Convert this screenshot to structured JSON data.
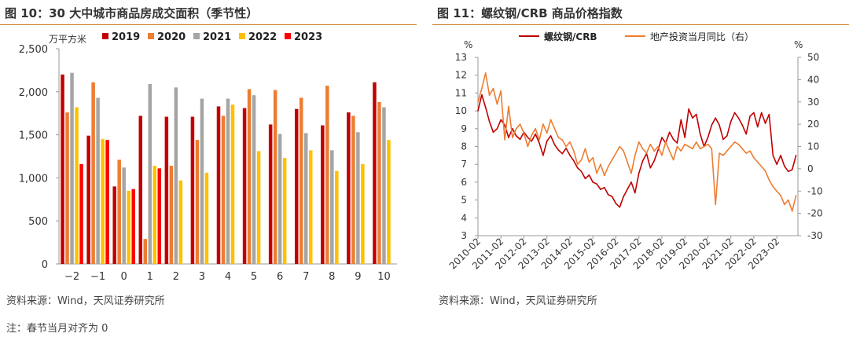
{
  "left": {
    "title": "图 10：30 大中城市商品房成交面积（季节性）",
    "source": "资料来源：Wind，天风证券研究所"
  },
  "right": {
    "title": "图 11：螺纹钢/CRB 商品价格指数",
    "source": "资料来源：Wind，天风证券研究所"
  },
  "note": "注：春节当月对齐为 0",
  "chart_data": [
    {
      "type": "bar",
      "unit_label": "万平方米",
      "categories": [
        "−2",
        "−1",
        "0",
        "1",
        "2",
        "3",
        "4",
        "5",
        "6",
        "7",
        "8",
        "9",
        "10"
      ],
      "ylim": [
        0,
        2500
      ],
      "yticks": [
        0,
        500,
        1000,
        1500,
        2000,
        2500
      ],
      "ytick_labels": [
        "0",
        "500",
        "1,000",
        "1,500",
        "2,000",
        "2,500"
      ],
      "legend_position": "top",
      "series": [
        {
          "name": "2019",
          "color": "#c00000",
          "values": [
            2200,
            1490,
            900,
            1720,
            1710,
            1710,
            1830,
            1810,
            1620,
            1800,
            1610,
            1760,
            2110
          ]
        },
        {
          "name": "2020",
          "color": "#ed7d31",
          "values": [
            1760,
            2110,
            1210,
            290,
            1140,
            1440,
            1720,
            2030,
            2020,
            1930,
            2070,
            1720,
            1880
          ]
        },
        {
          "name": "2021",
          "color": "#a5a5a5",
          "values": [
            2220,
            1930,
            1120,
            2090,
            2050,
            1920,
            1920,
            1960,
            1510,
            1520,
            1320,
            1530,
            1820
          ]
        },
        {
          "name": "2022",
          "color": "#ffc000",
          "values": [
            1820,
            1450,
            850,
            1140,
            970,
            1060,
            1850,
            1310,
            1230,
            1320,
            1080,
            1160,
            1440
          ]
        },
        {
          "name": "2023",
          "color": "#ff0000",
          "values": [
            1160,
            1440,
            870,
            1110,
            null,
            null,
            null,
            null,
            null,
            null,
            null,
            null,
            null
          ]
        }
      ]
    },
    {
      "type": "line",
      "left_axis_label": "%",
      "right_axis_label": "%",
      "ylim_left": [
        3,
        13
      ],
      "ylim_right": [
        -30,
        50
      ],
      "yticks_left": [
        3,
        4,
        5,
        6,
        7,
        8,
        9,
        10,
        11,
        12,
        13
      ],
      "yticks_right": [
        -30,
        -20,
        -10,
        0,
        10,
        20,
        30,
        40,
        50
      ],
      "x_labels": [
        "2010-02",
        "2011-02",
        "2012-02",
        "2013-02",
        "2014-02",
        "2015-02",
        "2016-02",
        "2017-02",
        "2018-02",
        "2019-02",
        "2020-02",
        "2021-02",
        "2022-02",
        "2023-02"
      ],
      "legend_position": "top",
      "series": [
        {
          "name": "螺纹钢/CRB",
          "axis": "left",
          "color": "#c00000",
          "points": [
            [
              0,
              10.0
            ],
            [
              2,
              10.9
            ],
            [
              4,
              10.2
            ],
            [
              6,
              9.4
            ],
            [
              8,
              8.8
            ],
            [
              10,
              9.0
            ],
            [
              12,
              9.5
            ],
            [
              14,
              9.2
            ],
            [
              16,
              8.5
            ],
            [
              18,
              9.0
            ],
            [
              20,
              8.6
            ],
            [
              22,
              8.4
            ],
            [
              24,
              8.8
            ],
            [
              26,
              8.5
            ],
            [
              28,
              8.3
            ],
            [
              30,
              8.7
            ],
            [
              32,
              8.2
            ],
            [
              34,
              7.5
            ],
            [
              36,
              8.3
            ],
            [
              38,
              8.6
            ],
            [
              40,
              8.1
            ],
            [
              42,
              7.8
            ],
            [
              44,
              7.6
            ],
            [
              46,
              7.9
            ],
            [
              48,
              7.5
            ],
            [
              50,
              7.2
            ],
            [
              52,
              6.8
            ],
            [
              54,
              6.6
            ],
            [
              56,
              6.2
            ],
            [
              58,
              6.4
            ],
            [
              60,
              6.0
            ],
            [
              62,
              5.9
            ],
            [
              64,
              5.6
            ],
            [
              66,
              5.7
            ],
            [
              68,
              5.3
            ],
            [
              70,
              5.2
            ],
            [
              72,
              4.8
            ],
            [
              74,
              4.6
            ],
            [
              76,
              5.2
            ],
            [
              78,
              5.6
            ],
            [
              80,
              6.0
            ],
            [
              82,
              5.4
            ],
            [
              84,
              6.5
            ],
            [
              86,
              7.2
            ],
            [
              88,
              7.6
            ],
            [
              90,
              6.8
            ],
            [
              92,
              7.2
            ],
            [
              94,
              7.8
            ],
            [
              96,
              8.5
            ],
            [
              98,
              8.2
            ],
            [
              100,
              8.8
            ],
            [
              102,
              8.4
            ],
            [
              104,
              8.2
            ],
            [
              106,
              9.5
            ],
            [
              108,
              8.5
            ],
            [
              110,
              10.1
            ],
            [
              112,
              9.6
            ],
            [
              114,
              9.8
            ],
            [
              116,
              8.7
            ],
            [
              118,
              8.0
            ],
            [
              120,
              8.5
            ],
            [
              122,
              9.2
            ],
            [
              124,
              9.6
            ],
            [
              126,
              9.2
            ],
            [
              128,
              8.4
            ],
            [
              130,
              8.6
            ],
            [
              132,
              9.4
            ],
            [
              134,
              9.9
            ],
            [
              136,
              9.6
            ],
            [
              138,
              9.2
            ],
            [
              140,
              8.7
            ],
            [
              142,
              9.7
            ],
            [
              144,
              9.9
            ],
            [
              146,
              9.1
            ],
            [
              148,
              9.9
            ],
            [
              150,
              9.3
            ],
            [
              152,
              9.8
            ],
            [
              154,
              7.5
            ],
            [
              156,
              7.0
            ],
            [
              158,
              7.5
            ],
            [
              160,
              6.9
            ],
            [
              162,
              6.6
            ],
            [
              164,
              6.7
            ],
            [
              166,
              7.5
            ]
          ]
        },
        {
          "name": "地产投资当月同比（右）",
          "axis": "right",
          "color": "#ed7d31",
          "points": [
            [
              0,
              30
            ],
            [
              2,
              36
            ],
            [
              4,
              43
            ],
            [
              6,
              33
            ],
            [
              8,
              36
            ],
            [
              10,
              29
            ],
            [
              12,
              35
            ],
            [
              14,
              13
            ],
            [
              16,
              28
            ],
            [
              18,
              14
            ],
            [
              20,
              18
            ],
            [
              22,
              20
            ],
            [
              24,
              16
            ],
            [
              26,
              10
            ],
            [
              28,
              15
            ],
            [
              30,
              18
            ],
            [
              32,
              13
            ],
            [
              34,
              20
            ],
            [
              36,
              16
            ],
            [
              38,
              22
            ],
            [
              40,
              18
            ],
            [
              42,
              14
            ],
            [
              44,
              13
            ],
            [
              46,
              10
            ],
            [
              48,
              12
            ],
            [
              50,
              8
            ],
            [
              52,
              2
            ],
            [
              54,
              4
            ],
            [
              56,
              9
            ],
            [
              58,
              3
            ],
            [
              60,
              5
            ],
            [
              62,
              -2
            ],
            [
              64,
              2
            ],
            [
              66,
              -3
            ],
            [
              68,
              1
            ],
            [
              70,
              4
            ],
            [
              72,
              7
            ],
            [
              74,
              10
            ],
            [
              76,
              8
            ],
            [
              78,
              3
            ],
            [
              80,
              -2
            ],
            [
              82,
              6
            ],
            [
              84,
              12
            ],
            [
              86,
              9
            ],
            [
              88,
              7
            ],
            [
              90,
              11
            ],
            [
              92,
              8
            ],
            [
              94,
              10
            ],
            [
              96,
              6
            ],
            [
              98,
              12
            ],
            [
              100,
              8
            ],
            [
              102,
              4
            ],
            [
              104,
              10
            ],
            [
              106,
              8
            ],
            [
              108,
              11
            ],
            [
              110,
              10
            ],
            [
              112,
              9
            ],
            [
              114,
              12
            ],
            [
              116,
              9
            ],
            [
              118,
              10
            ],
            [
              120,
              11
            ],
            [
              122,
              9
            ],
            [
              124,
              -16
            ],
            [
              126,
              7
            ],
            [
              128,
              6
            ],
            [
              130,
              8
            ],
            [
              132,
              10
            ],
            [
              134,
              12
            ],
            [
              136,
              11
            ],
            [
              138,
              9
            ],
            [
              140,
              7
            ],
            [
              142,
              8
            ],
            [
              144,
              5
            ],
            [
              146,
              3
            ],
            [
              148,
              1
            ],
            [
              150,
              -1
            ],
            [
              152,
              -5
            ],
            [
              154,
              -8
            ],
            [
              156,
              -10
            ],
            [
              158,
              -12
            ],
            [
              160,
              -16
            ],
            [
              162,
              -14
            ],
            [
              164,
              -19
            ],
            [
              166,
              -12
            ]
          ]
        }
      ]
    }
  ]
}
